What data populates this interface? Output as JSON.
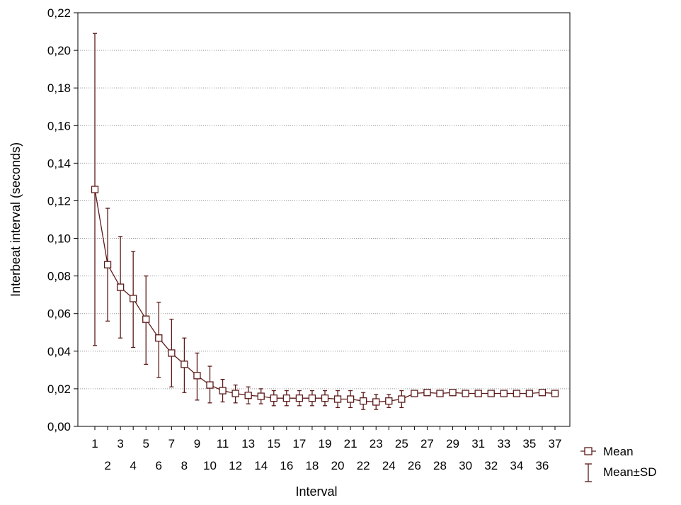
{
  "chart_data": {
    "type": "line",
    "xlabel": "Interval",
    "ylabel": "Interbeat interval (seconds)",
    "ylim": [
      0,
      0.22
    ],
    "yticks": [
      "0,00",
      "0,02",
      "0,04",
      "0,06",
      "0,08",
      "0,10",
      "0,12",
      "0,14",
      "0,16",
      "0,18",
      "0,20",
      "0,22"
    ],
    "ytick_values": [
      0,
      0.02,
      0.04,
      0.06,
      0.08,
      0.1,
      0.12,
      0.14,
      0.16,
      0.18,
      0.2,
      0.22
    ],
    "grid": "horizontal dotted",
    "legend_position": "right-bottom",
    "colors": {
      "series": "#5c1a1a",
      "grid": "#999999",
      "axis": "#000000"
    },
    "x": [
      1,
      2,
      3,
      4,
      5,
      6,
      7,
      8,
      9,
      10,
      11,
      12,
      13,
      14,
      15,
      16,
      17,
      18,
      19,
      20,
      21,
      22,
      23,
      24,
      25,
      26,
      27,
      28,
      29,
      30,
      31,
      32,
      33,
      34,
      35,
      36,
      37
    ],
    "series": [
      {
        "name": "Mean",
        "values": [
          0.126,
          0.086,
          0.074,
          0.068,
          0.057,
          0.047,
          0.039,
          0.033,
          0.027,
          0.022,
          0.019,
          0.0175,
          0.0165,
          0.016,
          0.015,
          0.015,
          0.015,
          0.015,
          0.015,
          0.0145,
          0.0145,
          0.0135,
          0.013,
          0.0135,
          0.0145,
          0.0175,
          0.018,
          0.0175,
          0.018,
          0.0175,
          0.0175,
          0.0175,
          0.0175,
          0.0175,
          0.0175,
          0.018,
          0.0175
        ]
      },
      {
        "name": "Mean±SD",
        "lower": [
          0.043,
          0.056,
          0.047,
          0.042,
          0.033,
          0.026,
          0.021,
          0.018,
          0.014,
          0.0125,
          0.013,
          0.0125,
          0.012,
          0.012,
          0.011,
          0.011,
          0.011,
          0.011,
          0.011,
          0.01,
          0.01,
          0.009,
          0.009,
          0.01,
          0.01,
          0.017,
          0.0175,
          0.017,
          0.0175,
          0.017,
          0.017,
          0.017,
          0.017,
          0.017,
          0.017,
          0.0175,
          0.017
        ],
        "upper": [
          0.209,
          0.116,
          0.101,
          0.093,
          0.08,
          0.066,
          0.057,
          0.047,
          0.039,
          0.032,
          0.025,
          0.022,
          0.021,
          0.02,
          0.019,
          0.019,
          0.019,
          0.019,
          0.019,
          0.019,
          0.019,
          0.018,
          0.017,
          0.017,
          0.019,
          0.018,
          0.0185,
          0.018,
          0.0185,
          0.018,
          0.018,
          0.018,
          0.018,
          0.018,
          0.018,
          0.0185,
          0.018
        ]
      }
    ]
  }
}
